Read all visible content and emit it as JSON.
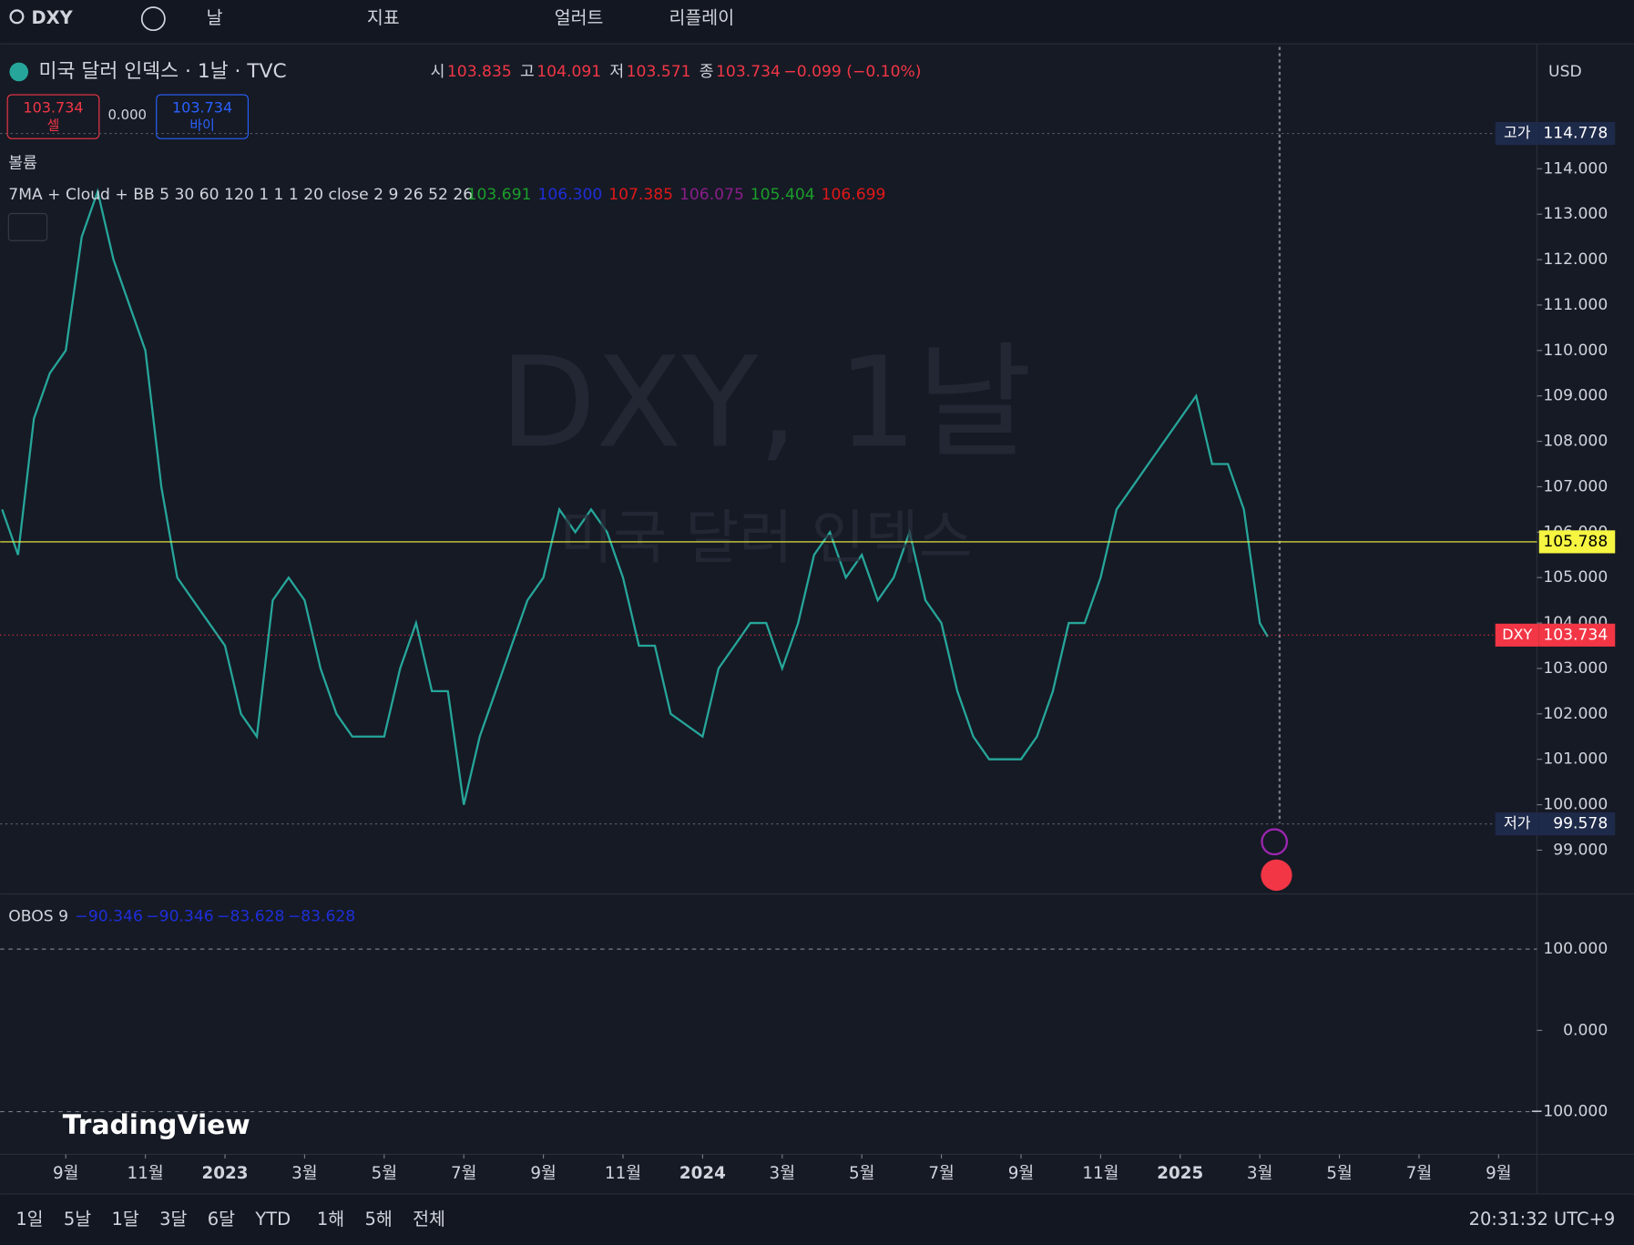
{
  "toolbar": {
    "symbol": "DXY",
    "interval": "날",
    "indicators": "지표",
    "alerts": "얼러트",
    "replay": "리플레이"
  },
  "header": {
    "title": "미국 달러 인덱스 · 1날 · TVC",
    "open_label": "시",
    "open": "103.835",
    "high_label": "고",
    "high": "104.091",
    "low_label": "저",
    "low": "103.571",
    "close_label": "종",
    "close": "103.734",
    "change": "−0.099 (−0.10%)"
  },
  "trade": {
    "sell_price": "103.734",
    "sell_label": "셀",
    "spread": "0.000",
    "buy_price": "103.734",
    "buy_label": "바이"
  },
  "volume_label": "볼륨",
  "indicator": {
    "name": "7MA + Cloud + BB 5 30 60 120 1 1 1 20 close 2 9 26 52 26",
    "values": [
      {
        "text": "103.691",
        "color": "#1b9e2a"
      },
      {
        "text": "106.300",
        "color": "#1e2fd8"
      },
      {
        "text": "107.385",
        "color": "#e01818"
      },
      {
        "text": "106.075",
        "color": "#8a1e8a"
      },
      {
        "text": "105.404",
        "color": "#1b9e2a"
      },
      {
        "text": "106.699",
        "color": "#e01818"
      }
    ]
  },
  "watermark": {
    "line1": "DXY, 1날",
    "line2": "미국 달러 인덱스"
  },
  "price_axis": {
    "currency": "USD",
    "ticks": [
      {
        "value": 99,
        "label": "99.000"
      },
      {
        "value": 100,
        "label": "100.000"
      },
      {
        "value": 101,
        "label": "101.000"
      },
      {
        "value": 102,
        "label": "102.000"
      },
      {
        "value": 103,
        "label": "103.000"
      },
      {
        "value": 104,
        "label": "104.000"
      },
      {
        "value": 105,
        "label": "105.000"
      },
      {
        "value": 106,
        "label": "106.000"
      },
      {
        "value": 107,
        "label": "107.000"
      },
      {
        "value": 108,
        "label": "108.000"
      },
      {
        "value": 109,
        "label": "109.000"
      },
      {
        "value": 110,
        "label": "110.000"
      },
      {
        "value": 111,
        "label": "111.000"
      },
      {
        "value": 112,
        "label": "112.000"
      },
      {
        "value": 113,
        "label": "113.000"
      },
      {
        "value": 114,
        "label": "114.000"
      }
    ],
    "high_marker": {
      "label": "고가",
      "value": 114.778
    },
    "crosshair": 105.788,
    "last_marker": {
      "label": "DXY",
      "value": 103.734
    },
    "low_marker": {
      "label": "저가",
      "value": 99.578
    }
  },
  "time_axis": [
    {
      "value": 0,
      "label": "9월"
    },
    {
      "value": 2,
      "label": "11월"
    },
    {
      "value": 4,
      "label": "2023"
    },
    {
      "value": 6,
      "label": "3월"
    },
    {
      "value": 8,
      "label": "5월"
    },
    {
      "value": 10,
      "label": "7월"
    },
    {
      "value": 12,
      "label": "9월"
    },
    {
      "value": 14,
      "label": "11월"
    },
    {
      "value": 16,
      "label": "2024"
    },
    {
      "value": 18,
      "label": "3월"
    },
    {
      "value": 20,
      "label": "5월"
    },
    {
      "value": 22,
      "label": "7월"
    },
    {
      "value": 24,
      "label": "9월"
    },
    {
      "value": 26,
      "label": "11월"
    },
    {
      "value": 28,
      "label": "2025"
    },
    {
      "value": 30,
      "label": "3월"
    },
    {
      "value": 32,
      "label": "5월"
    },
    {
      "value": 34,
      "label": "7월"
    },
    {
      "value": 36,
      "label": "9월"
    }
  ],
  "price_series": {
    "x": [
      -1.6,
      -1.2,
      -0.8,
      -0.4,
      0,
      0.4,
      0.8,
      1.2,
      1.6,
      2.0,
      2.4,
      2.8,
      3.2,
      3.6,
      4.0,
      4.4,
      4.8,
      5.2,
      5.6,
      6.0,
      6.4,
      6.8,
      7.2,
      7.6,
      8.0,
      8.4,
      8.8,
      9.2,
      9.6,
      10.0,
      10.4,
      10.8,
      11.2,
      11.6,
      12.0,
      12.4,
      12.8,
      13.2,
      13.6,
      14.0,
      14.4,
      14.8,
      15.2,
      16.0,
      16.4,
      16.8,
      17.2,
      17.6,
      18.0,
      18.4,
      18.8,
      19.2,
      19.6,
      20.0,
      20.4,
      20.8,
      21.2,
      21.6,
      22.0,
      22.4,
      22.8,
      23.2,
      24.0,
      24.4,
      24.8,
      25.2,
      25.6,
      26.0,
      26.4,
      26.8,
      27.2,
      27.6,
      28.0,
      28.4,
      28.8,
      29.2,
      29.6,
      30.0,
      30.2
    ],
    "close": [
      106.5,
      105.5,
      108.5,
      109.5,
      110,
      112.5,
      113.5,
      112,
      111,
      110,
      107,
      105,
      104.5,
      104,
      103.5,
      102,
      101.5,
      104.5,
      105,
      104.5,
      103,
      102,
      101.5,
      101.5,
      101.5,
      103,
      104,
      102.5,
      102.5,
      100,
      101.5,
      102.5,
      103.5,
      104.5,
      105,
      106.5,
      106,
      106.5,
      106,
      105,
      103.5,
      103.5,
      102,
      101.5,
      103,
      103.5,
      104,
      104,
      103,
      104,
      105.5,
      106,
      105,
      105.5,
      104.5,
      105,
      106,
      104.5,
      104,
      102.5,
      101.5,
      101,
      101,
      101.5,
      102.5,
      104,
      104,
      105,
      106.5,
      107,
      107.5,
      108,
      108.5,
      109,
      107.5,
      107.5,
      106.5,
      104,
      103.7
    ]
  },
  "obos": {
    "name": "OBOS 9",
    "values": [
      "−90.346",
      "−90.346",
      "−83.628",
      "−83.628"
    ],
    "ticks": [
      {
        "value": 100,
        "label": "100.000"
      },
      {
        "value": 0,
        "label": "0.000"
      },
      {
        "value": -100,
        "label": "−100.000"
      }
    ]
  },
  "logo": "TradingView",
  "bottom_bar": {
    "ranges": [
      "1일",
      "5날",
      "1달",
      "3달",
      "6달",
      "YTD",
      "1해",
      "5해",
      "전체"
    ],
    "clock": "20:31:32 UTC+9"
  }
}
